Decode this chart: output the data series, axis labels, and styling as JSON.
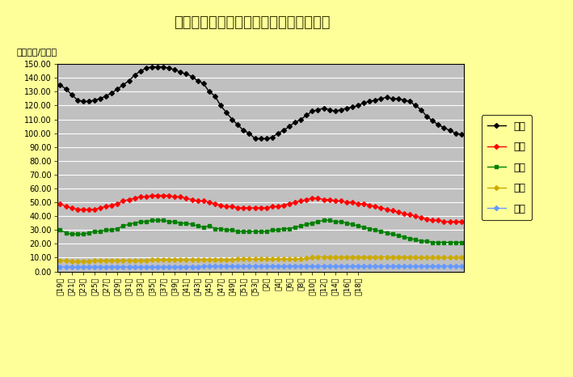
{
  "title": "陕西省近一年主要畜产品价格周度走势图",
  "ylabel": "价格（元/公斤）",
  "background_color": "#ffff99",
  "plot_bg_color": "#c0c0c0",
  "x_labels": [
    "第19周",
    "第21周",
    "第23周",
    "第25周",
    "第27周",
    "第29周",
    "第31周",
    "第33周",
    "第35周",
    "第37周",
    "第39周",
    "第41周",
    "第43周",
    "第45周",
    "第47周",
    "第49周",
    "第51周",
    "第53周",
    "第2周",
    "第4周",
    "第6周",
    "第8周",
    "第10周",
    "第12周",
    "第14周",
    "第16周",
    "第18周"
  ],
  "x_label_indices": [
    0,
    2,
    4,
    6,
    8,
    10,
    12,
    14,
    16,
    18,
    20,
    22,
    24,
    26,
    28,
    30,
    32,
    34,
    36,
    38,
    40,
    42,
    44,
    46,
    48,
    50,
    52
  ],
  "zi_zhu": [
    135,
    132,
    128,
    124,
    123,
    123,
    124,
    125,
    127,
    129,
    132,
    135,
    138,
    142,
    145,
    147,
    148,
    148,
    148,
    147,
    146,
    144,
    143,
    141,
    138,
    136,
    130,
    127,
    120,
    115,
    110,
    106,
    102,
    100,
    96,
    96,
    96,
    97,
    100,
    102,
    105,
    108,
    110,
    113,
    116,
    117,
    118,
    117,
    116,
    117,
    118,
    119,
    120,
    122,
    123,
    124,
    125,
    126,
    125,
    125,
    124,
    123,
    120,
    117,
    112,
    109,
    106,
    104,
    102,
    100,
    99
  ],
  "zhu_rou": [
    49,
    47,
    46,
    45,
    45,
    45,
    45,
    46,
    47,
    48,
    49,
    51,
    52,
    53,
    54,
    54,
    55,
    55,
    55,
    55,
    54,
    54,
    53,
    52,
    51,
    51,
    50,
    49,
    48,
    47,
    47,
    46,
    46,
    46,
    46,
    46,
    46,
    47,
    47,
    48,
    49,
    50,
    51,
    52,
    53,
    53,
    52,
    52,
    51,
    51,
    50,
    50,
    49,
    49,
    48,
    47,
    46,
    45,
    44,
    43,
    42,
    41,
    40,
    39,
    38,
    37,
    37,
    36,
    36,
    36,
    36
  ],
  "huo_zhu": [
    30,
    28,
    27,
    27,
    27,
    28,
    29,
    29,
    30,
    30,
    31,
    33,
    34,
    35,
    36,
    36,
    37,
    37,
    37,
    36,
    36,
    35,
    35,
    34,
    33,
    32,
    33,
    31,
    31,
    30,
    30,
    29,
    29,
    29,
    29,
    29,
    29,
    30,
    30,
    31,
    31,
    32,
    33,
    34,
    35,
    36,
    37,
    37,
    36,
    36,
    35,
    34,
    33,
    32,
    31,
    30,
    29,
    28,
    27,
    26,
    25,
    24,
    23,
    22,
    22,
    21,
    21,
    21,
    21,
    21,
    21
  ],
  "ji_dan": [
    8.0,
    7.8,
    7.5,
    7.5,
    7.5,
    7.5,
    7.8,
    8.0,
    8.0,
    8.0,
    8.0,
    8.0,
    8.0,
    8.0,
    8.0,
    8.2,
    8.5,
    8.5,
    8.5,
    8.5,
    8.5,
    8.5,
    8.5,
    8.5,
    8.5,
    8.5,
    8.5,
    8.5,
    8.5,
    8.5,
    8.5,
    8.8,
    9.0,
    9.0,
    9.0,
    9.0,
    9.0,
    9.0,
    9.0,
    9.0,
    9.0,
    9.0,
    9.0,
    9.5,
    10.0,
    10.5,
    10.5,
    10.5,
    10.5,
    10.5,
    10.5,
    10.5,
    10.5,
    10.5,
    10.5,
    10.5,
    10.5,
    10.5,
    10.5,
    10.5,
    10.5,
    10.5,
    10.5,
    10.0,
    10.0,
    10.0,
    10.0,
    10.0,
    10.0,
    10.0,
    10.0
  ],
  "niu_nai": [
    3.5,
    3.5,
    3.5,
    3.5,
    3.5,
    3.5,
    3.5,
    3.5,
    3.5,
    3.5,
    3.5,
    3.5,
    3.5,
    3.5,
    3.5,
    3.5,
    3.5,
    3.5,
    3.5,
    3.5,
    3.5,
    3.5,
    3.5,
    3.5,
    3.5,
    3.8,
    4.0,
    4.0,
    4.0,
    4.0,
    4.0,
    4.0,
    4.0,
    4.0,
    4.0,
    4.0,
    4.0,
    4.0,
    4.0,
    4.0,
    4.0,
    4.0,
    4.0,
    4.0,
    4.0,
    4.0,
    4.0,
    4.0,
    4.0,
    4.0,
    4.0,
    4.0,
    4.0,
    4.0,
    4.0,
    4.0,
    4.0,
    4.0,
    4.0,
    4.0,
    4.0,
    4.0,
    4.0,
    4.0,
    4.0,
    4.0,
    4.0,
    4.0,
    4.0,
    4.0,
    4.0
  ],
  "series_meta": [
    {
      "name": "仔猪",
      "color": "#000000",
      "marker": "D",
      "markersize": 3
    },
    {
      "name": "猪肉",
      "color": "#ff0000",
      "marker": "D",
      "markersize": 3
    },
    {
      "name": "活猪",
      "color": "#008000",
      "marker": "s",
      "markersize": 3
    },
    {
      "name": "鸡蛋",
      "color": "#ccaa00",
      "marker": "D",
      "markersize": 3
    },
    {
      "name": "牛奶",
      "color": "#6699ff",
      "marker": "D",
      "markersize": 3
    }
  ],
  "ylim": [
    0,
    150
  ],
  "yticks": [
    0,
    10,
    20,
    30,
    40,
    50,
    60,
    70,
    80,
    90,
    100,
    110,
    120,
    130,
    140,
    150
  ]
}
